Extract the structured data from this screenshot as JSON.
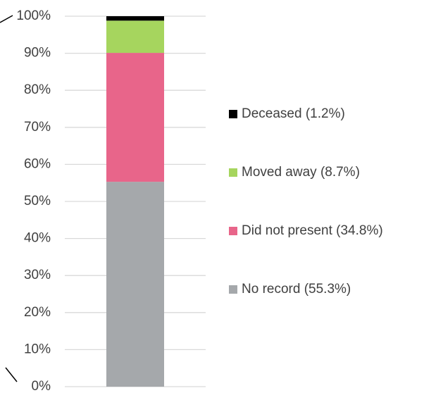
{
  "chart_data": {
    "type": "stacked-bar",
    "series": [
      {
        "name": "No record (55.3%)",
        "color": "#a5a8ab",
        "values": [
          55.3
        ]
      },
      {
        "name": "Did not present (34.8%)",
        "color": "#e8658a",
        "values": [
          34.8
        ]
      },
      {
        "name": "Moved away (8.7%)",
        "color": "#a6d55e",
        "values": [
          8.7
        ]
      },
      {
        "name": "Deceased (1.2%)",
        "color": "#000000",
        "values": [
          1.2
        ]
      }
    ],
    "ylim": [
      0,
      100
    ],
    "yticks": [
      {
        "value": 0,
        "label": "0%"
      },
      {
        "value": 10,
        "label": "10%"
      },
      {
        "value": 20,
        "label": "20%"
      },
      {
        "value": 30,
        "label": "30%"
      },
      {
        "value": 40,
        "label": "40%"
      },
      {
        "value": 50,
        "label": "50%"
      },
      {
        "value": 60,
        "label": "60%"
      },
      {
        "value": 70,
        "label": "70%"
      },
      {
        "value": 80,
        "label": "80%"
      },
      {
        "value": 90,
        "label": "90%"
      },
      {
        "value": 100,
        "label": "100%"
      }
    ],
    "grid": true,
    "legend": "right"
  }
}
